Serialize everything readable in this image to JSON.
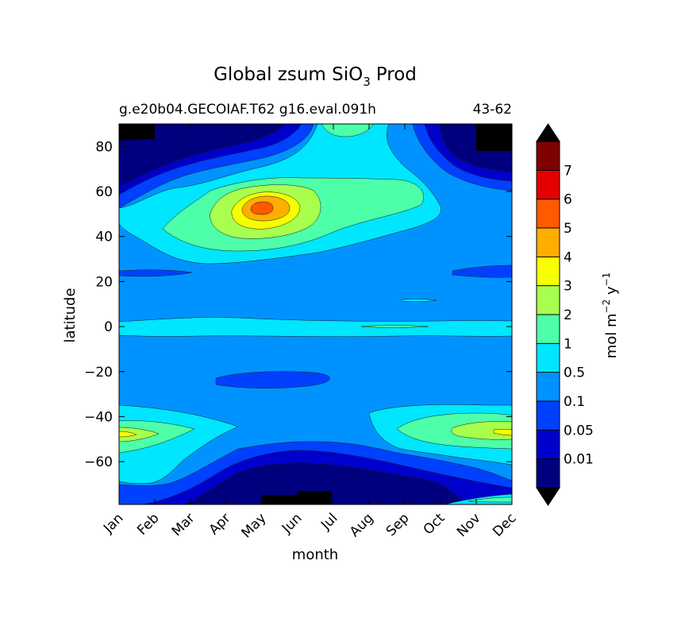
{
  "chart_data": {
    "type": "heatmap",
    "plot_kind": "filled-contour",
    "title": "Global zsum SiO",
    "title_subscript": "3",
    "title_suffix": "Prod",
    "subtitle_left": "g.e20b04.GECOIAF.T62 g16.eval.091h",
    "subtitle_right": "43-62",
    "xlabel": "month",
    "ylabel": "latitude",
    "x_categories": [
      "Jan",
      "Feb",
      "Mar",
      "Apr",
      "May",
      "Jun",
      "Jul",
      "Aug",
      "Sep",
      "Oct",
      "Nov",
      "Dec"
    ],
    "ylim": [
      -79,
      90
    ],
    "y_ticks": [
      80,
      60,
      40,
      20,
      0,
      -20,
      -40,
      -60
    ],
    "y_tick_labels": [
      "80",
      "60",
      "40",
      "20",
      "0",
      "−20",
      "−40",
      "−60"
    ],
    "colorbar": {
      "label_parts": [
        "mol m",
        "−2",
        " y",
        "−1"
      ],
      "levels": [
        0.01,
        0.05,
        0.1,
        0.5,
        1,
        2,
        3,
        4,
        5,
        6,
        7
      ],
      "level_labels": [
        "0.01",
        "0.05",
        "0.1",
        "0.5",
        "1",
        "2",
        "3",
        "4",
        "5",
        "6",
        "7"
      ],
      "colors": [
        "#00007f",
        "#0000cd",
        "#0040ff",
        "#0093ff",
        "#00e6ff",
        "#4dffa9",
        "#a8ff4e",
        "#f5ff00",
        "#ffae00",
        "#ff5a00",
        "#e50000",
        "#7f0000"
      ],
      "extend": "both",
      "under_color": "#000000",
      "over_color": "#000000"
    }
  }
}
